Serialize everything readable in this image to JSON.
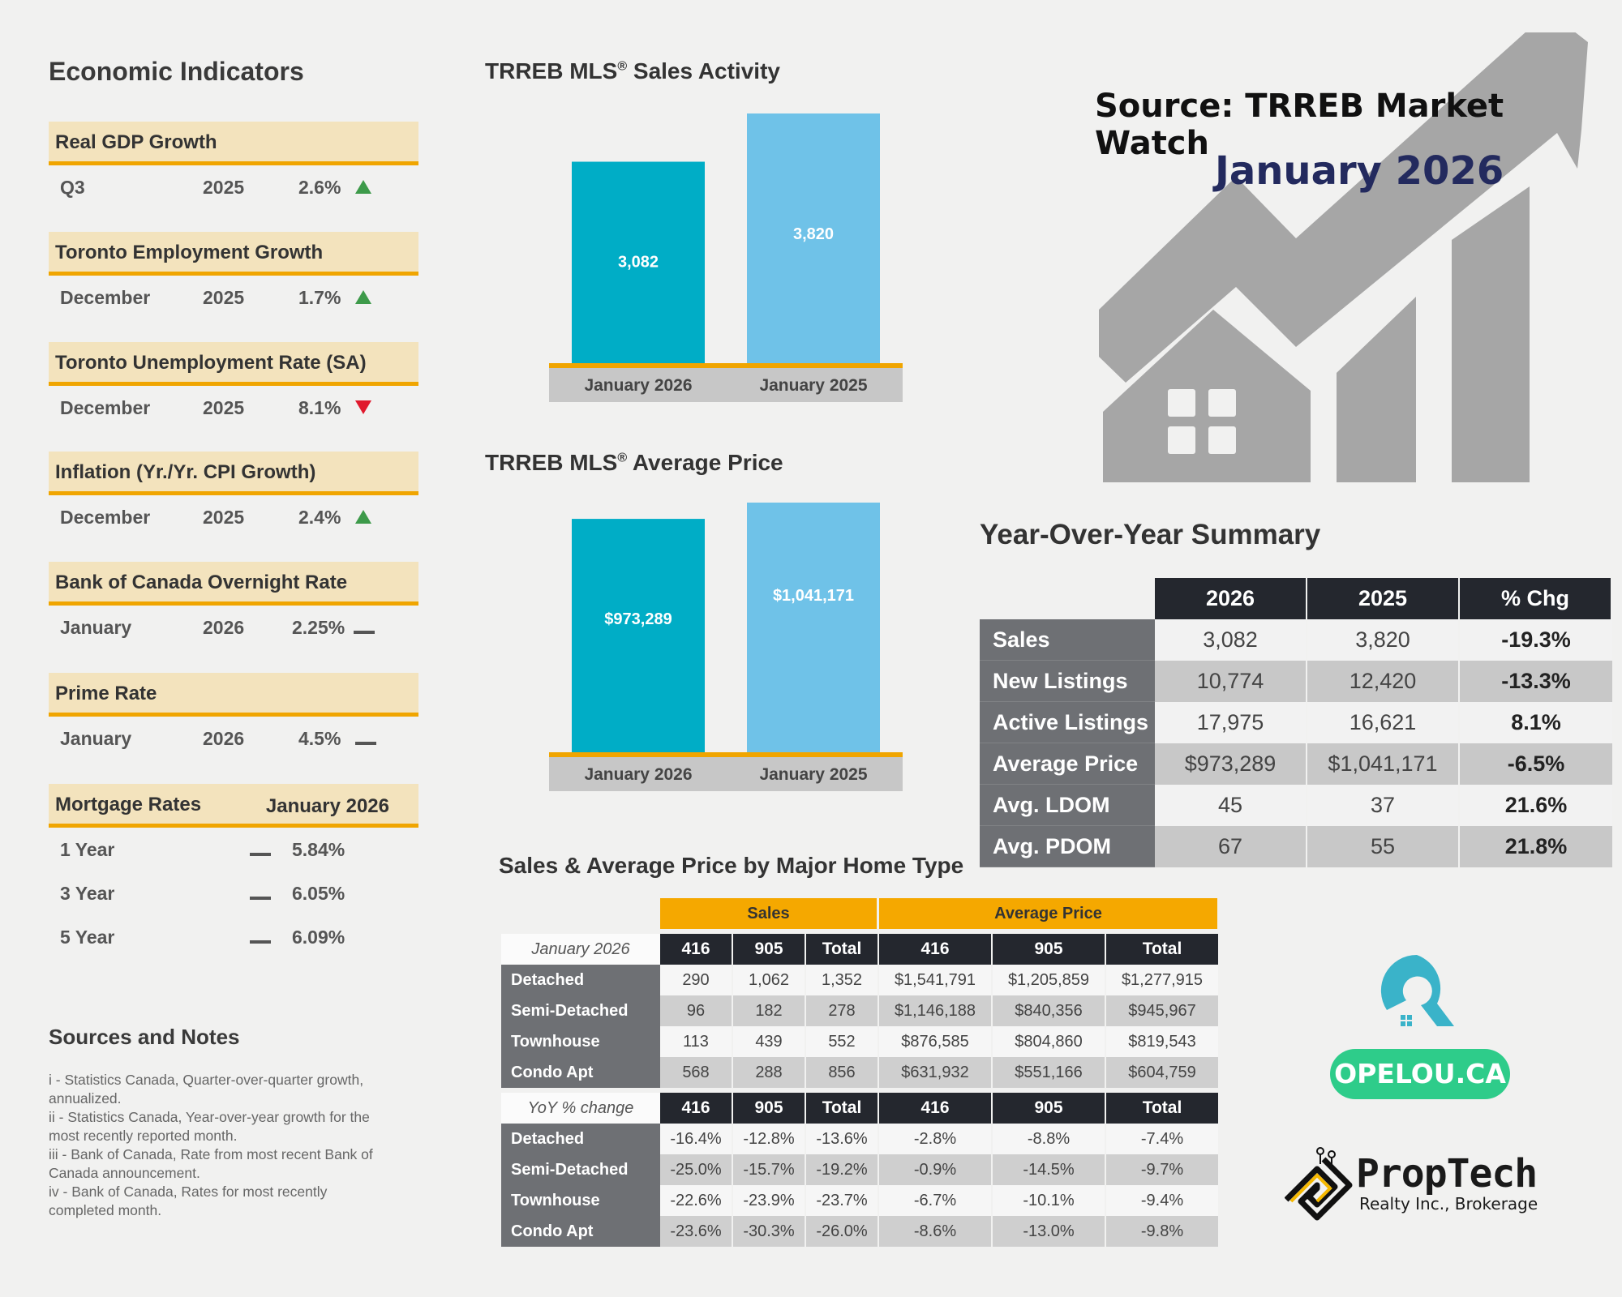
{
  "economic_indicators": {
    "title": "Economic Indicators",
    "groups": [
      {
        "label": "Real GDP Growth",
        "rows": [
          {
            "period": "Q3",
            "year": "2025",
            "value": "2.6%",
            "trend": "up"
          }
        ]
      },
      {
        "label": "Toronto Employment Growth",
        "rows": [
          {
            "period": "December",
            "year": "2025",
            "value": "1.7%",
            "trend": "up"
          }
        ]
      },
      {
        "label": "Toronto Unemployment Rate (SA)",
        "rows": [
          {
            "period": "December",
            "year": "2025",
            "value": "8.1%",
            "trend": "down"
          }
        ]
      },
      {
        "label": "Inflation (Yr./Yr. CPI Growth)",
        "rows": [
          {
            "period": "December",
            "year": "2025",
            "value": "2.4%",
            "trend": "up"
          }
        ]
      },
      {
        "label": "Bank of Canada Overnight Rate",
        "rows": [
          {
            "period": "January",
            "year": "2026",
            "value": "2.25%",
            "trend": "flat"
          }
        ]
      },
      {
        "label": "Prime Rate",
        "rows": [
          {
            "period": "January",
            "year": "2026",
            "value": "4.5%",
            "trend": "flat"
          }
        ]
      }
    ],
    "mortgage": {
      "label": "Mortgage Rates",
      "date": "January 2026",
      "rows": [
        {
          "term": "1 Year",
          "trend": "flat",
          "value": "5.84%"
        },
        {
          "term": "3 Year",
          "trend": "flat",
          "value": "6.05%"
        },
        {
          "term": "5 Year",
          "trend": "flat",
          "value": "6.09%"
        }
      ]
    }
  },
  "notes": {
    "title": "Sources and Notes",
    "items": [
      "i - Statistics Canada, Quarter-over-quarter growth, annualized.",
      "ii - Statistics Canada, Year-over-year growth for the most recently reported month.",
      "iii - Bank of Canada, Rate from most recent Bank of Canada announcement.",
      "iv - Bank of Canada, Rates for most recently completed month."
    ]
  },
  "header": {
    "source": "Source: TRREB Market Watch",
    "month": "January 2026"
  },
  "chart_data": [
    {
      "type": "bar",
      "title": "TRREB MLS® Sales Activity",
      "categories": [
        "January 2026",
        "January 2025"
      ],
      "values": [
        3082,
        3820
      ],
      "labels": [
        "3,082",
        "3,820"
      ],
      "colors": [
        "#00adc6",
        "#6fc2e8"
      ]
    },
    {
      "type": "bar",
      "title": "TRREB MLS® Average Price",
      "categories": [
        "January 2026",
        "January 2025"
      ],
      "values": [
        973289,
        1041171
      ],
      "labels": [
        "$973,289",
        "$1,041,171"
      ],
      "colors": [
        "#00adc6",
        "#6fc2e8"
      ]
    }
  ],
  "yoy": {
    "title": "Year-Over-Year Summary",
    "headers": [
      "2026",
      "2025",
      "% Chg"
    ],
    "rows": [
      {
        "label": "Sales",
        "v2026": "3,082",
        "v2025": "3,820",
        "chg": "-19.3%"
      },
      {
        "label": "New Listings",
        "v2026": "10,774",
        "v2025": "12,420",
        "chg": "-13.3%"
      },
      {
        "label": "Active Listings",
        "v2026": "17,975",
        "v2025": "16,621",
        "chg": "8.1%"
      },
      {
        "label": "Average Price",
        "v2026": "$973,289",
        "v2025": "$1,041,171",
        "chg": "-6.5%"
      },
      {
        "label": "Avg. LDOM",
        "v2026": "45",
        "v2025": "37",
        "chg": "21.6%"
      },
      {
        "label": "Avg. PDOM",
        "v2026": "67",
        "v2025": "55",
        "chg": "21.8%"
      }
    ]
  },
  "home_type": {
    "title": "Sales & Average Price by Major Home Type",
    "group_sales": "Sales",
    "group_price": "Average Price",
    "cols": [
      "416",
      "905",
      "Total",
      "416",
      "905",
      "Total"
    ],
    "section1_label": "January 2026",
    "section1": [
      {
        "type": "Detached",
        "vals": [
          "290",
          "1,062",
          "1,352",
          "$1,541,791",
          "$1,205,859",
          "$1,277,915"
        ]
      },
      {
        "type": "Semi-Detached",
        "vals": [
          "96",
          "182",
          "278",
          "$1,146,188",
          "$840,356",
          "$945,967"
        ]
      },
      {
        "type": "Townhouse",
        "vals": [
          "113",
          "439",
          "552",
          "$876,585",
          "$804,860",
          "$819,543"
        ]
      },
      {
        "type": "Condo Apt",
        "vals": [
          "568",
          "288",
          "856",
          "$631,932",
          "$551,166",
          "$604,759"
        ]
      }
    ],
    "section2_label": "YoY % change",
    "section2": [
      {
        "type": "Detached",
        "vals": [
          "-16.4%",
          "-12.8%",
          "-13.6%",
          "-2.8%",
          "-8.8%",
          "-7.4%"
        ]
      },
      {
        "type": "Semi-Detached",
        "vals": [
          "-25.0%",
          "-15.7%",
          "-19.2%",
          "-0.9%",
          "-14.5%",
          "-9.7%"
        ]
      },
      {
        "type": "Townhouse",
        "vals": [
          "-22.6%",
          "-23.9%",
          "-23.7%",
          "-6.7%",
          "-10.1%",
          "-9.4%"
        ]
      },
      {
        "type": "Condo Apt",
        "vals": [
          "-23.6%",
          "-30.3%",
          "-26.0%",
          "-8.6%",
          "-13.0%",
          "-9.8%"
        ]
      }
    ]
  },
  "brand": {
    "opelou": "OPELOU.CA",
    "proptech_name": "PropTech",
    "proptech_sub": "Realty Inc., Brokerage",
    "colors": {
      "opelou": "#2ecc8a",
      "opelou_logo": "#3ab3c9",
      "proptech": "#f5b800"
    }
  }
}
